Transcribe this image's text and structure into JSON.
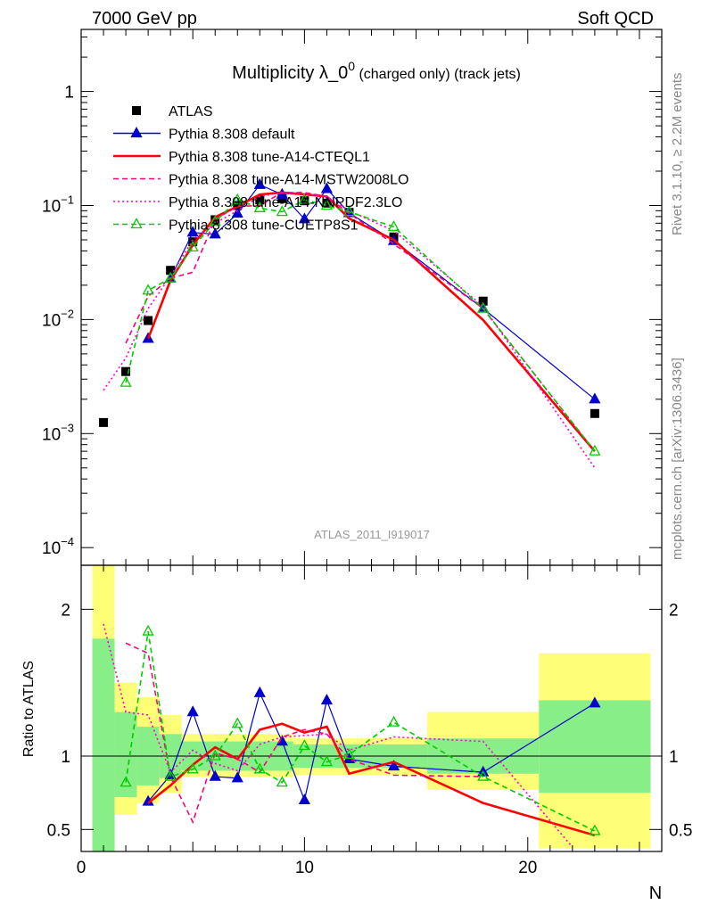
{
  "header": {
    "left": "7000 GeV pp",
    "right": "Soft QCD"
  },
  "side": {
    "top": "Rivet 3.1.10, ≥ 2.2M events",
    "bottom": "mcplots.cern.ch [arXiv:1306.3436]"
  },
  "title": {
    "main": "Multiplicity λ_0",
    "sup": "0",
    "small": " (charged only) (track jets)"
  },
  "watermark": "ATLAS_2011_I919017",
  "chart_data": [
    {
      "type": "scatter",
      "panel": "main",
      "ylabel": "",
      "xlabel": "N",
      "xlim": [
        0,
        26
      ],
      "ylim": [
        7e-05,
        3.5
      ],
      "yscale": "log",
      "yticks": [
        0.0001,
        0.001,
        0.01,
        0.1,
        1
      ],
      "ytick_labels": [
        {
          "base": "10",
          "exp": "−4"
        },
        {
          "base": "10",
          "exp": "−3"
        },
        {
          "base": "10",
          "exp": "−2"
        },
        {
          "base": "10",
          "exp": "−1"
        },
        {
          "base": "1",
          "exp": ""
        }
      ],
      "legend_position": "top-left",
      "series": [
        {
          "name": "ATLAS",
          "color": "#000000",
          "style": "marker-square",
          "x": [
            1,
            2,
            3,
            4,
            5,
            6,
            7,
            8,
            9,
            10,
            11,
            12,
            14,
            18,
            23
          ],
          "y": [
            0.00125,
            0.0035,
            0.0098,
            0.027,
            0.048,
            0.075,
            0.1,
            0.112,
            0.115,
            0.11,
            0.105,
            0.087,
            0.053,
            0.0145,
            0.0015
          ]
        },
        {
          "name": "Pythia 8.308 default",
          "color": "#0000cc",
          "style": "solid-triangle",
          "x": [
            3,
            4,
            5,
            6,
            7,
            8,
            9,
            10,
            11,
            12,
            14,
            18,
            23
          ],
          "y": [
            0.0068,
            0.023,
            0.058,
            0.056,
            0.085,
            0.152,
            0.125,
            0.076,
            0.14,
            0.086,
            0.049,
            0.0125,
            0.002
          ]
        },
        {
          "name": "Pythia 8.308 tune-A14-CTEQL1",
          "color": "#ff0000",
          "style": "solid-thick",
          "x": [
            3,
            4,
            5,
            6,
            7,
            8,
            9,
            10,
            11,
            12,
            14,
            18,
            23
          ],
          "y": [
            0.0068,
            0.022,
            0.045,
            0.079,
            0.098,
            0.125,
            0.13,
            0.125,
            0.12,
            0.077,
            0.05,
            0.0099,
            0.0007
          ]
        },
        {
          "name": "Pythia 8.308 tune-A14-MSTW2008LO",
          "color": "#ff007f",
          "style": "dashed",
          "x": [
            2,
            3,
            4,
            5,
            6,
            7,
            8,
            9,
            10,
            11,
            12,
            14,
            18,
            23
          ],
          "y": [
            0.0062,
            0.016,
            0.023,
            0.026,
            0.076,
            0.098,
            0.1,
            0.13,
            0.13,
            0.12,
            0.085,
            0.046,
            0.0125,
            0.0007
          ]
        },
        {
          "name": "Pythia 8.308 tune-A14-NNPDF2.3LO",
          "color": "#ff00cc",
          "style": "dotted",
          "x": [
            1,
            2,
            3,
            4,
            5,
            6,
            7,
            8,
            9,
            10,
            11,
            12,
            14,
            18,
            23
          ],
          "y": [
            0.0024,
            0.0046,
            0.0125,
            0.024,
            0.05,
            0.07,
            0.09,
            0.12,
            0.13,
            0.125,
            0.12,
            0.09,
            0.06,
            0.013,
            0.0005
          ]
        },
        {
          "name": "Pythia 8.308 tune-CUETP8S1",
          "color": "#00cc00",
          "style": "dashed-open-triangle",
          "x": [
            2,
            3,
            4,
            5,
            6,
            7,
            8,
            9,
            10,
            11,
            12,
            14,
            18,
            23
          ],
          "y": [
            0.0028,
            0.018,
            0.023,
            0.043,
            0.072,
            0.112,
            0.095,
            0.088,
            0.112,
            0.1,
            0.088,
            0.065,
            0.0125,
            0.0007
          ]
        }
      ]
    },
    {
      "type": "line",
      "panel": "ratio",
      "ylabel": "Ratio to ATLAS",
      "xlabel": "N",
      "xlim": [
        0,
        26
      ],
      "ylim": [
        0.35,
        2.3
      ],
      "xticks": [
        0,
        10,
        20
      ],
      "yticks": [
        0.5,
        1,
        2
      ],
      "ytick_labels": [
        "0.5",
        "1",
        "2"
      ],
      "bands": [
        {
          "x0": 0.5,
          "x1": 1.5,
          "green": [
            0.35,
            1.8
          ],
          "yellow": [
            0.35,
            2.3
          ]
        },
        {
          "x0": 1.5,
          "x1": 2.5,
          "green": [
            0.72,
            1.3
          ],
          "yellow": [
            0.6,
            1.5
          ]
        },
        {
          "x0": 2.5,
          "x1": 3.5,
          "green": [
            0.8,
            1.2
          ],
          "yellow": [
            0.68,
            1.4
          ]
        },
        {
          "x0": 3.5,
          "x1": 4.5,
          "green": [
            0.85,
            1.15
          ],
          "yellow": [
            0.75,
            1.28
          ]
        },
        {
          "x0": 4.5,
          "x1": 9.5,
          "green": [
            0.9,
            1.1
          ],
          "yellow": [
            0.86,
            1.15
          ]
        },
        {
          "x0": 9.5,
          "x1": 15.5,
          "green": [
            0.92,
            1.08
          ],
          "yellow": [
            0.87,
            1.12
          ]
        },
        {
          "x0": 15.5,
          "x1": 20.5,
          "green": [
            0.88,
            1.12
          ],
          "yellow": [
            0.77,
            1.3
          ]
        },
        {
          "x0": 20.5,
          "x1": 25.5,
          "green": [
            0.75,
            1.38
          ],
          "yellow": [
            0.37,
            1.7
          ]
        }
      ],
      "series": [
        {
          "name": "Pythia 8.308 default",
          "color": "#0000cc",
          "style": "solid-triangle",
          "x": [
            3,
            4,
            5,
            6,
            7,
            8,
            9,
            10,
            11,
            12,
            14,
            18,
            23
          ],
          "y": [
            0.69,
            0.87,
            1.3,
            0.86,
            0.85,
            1.43,
            1.1,
            0.7,
            1.38,
            0.98,
            0.93,
            0.89,
            1.36
          ]
        },
        {
          "name": "Pythia 8.308 tune-A14-CTEQL1",
          "color": "#ff0000",
          "style": "solid-thick",
          "x": [
            3,
            4,
            5,
            6,
            7,
            8,
            9,
            10,
            11,
            12,
            14,
            18,
            23
          ],
          "y": [
            0.68,
            0.8,
            0.94,
            1.06,
            0.98,
            1.18,
            1.22,
            1.16,
            1.2,
            0.88,
            0.96,
            0.68,
            0.46
          ]
        },
        {
          "name": "Pythia 8.308 tune-A14-MSTW2008LO",
          "color": "#ff007f",
          "style": "dashed",
          "x": [
            2,
            3,
            4,
            5,
            6,
            7,
            8,
            9,
            10,
            11,
            12,
            14,
            18
          ],
          "y": [
            1.77,
            1.7,
            0.86,
            0.55,
            1.02,
            0.98,
            0.89,
            1.13,
            1.18,
            1.15,
            0.98,
            0.87,
            0.86
          ]
        },
        {
          "name": "Pythia 8.308 tune-A14-NNPDF2.3LO",
          "color": "#ff00cc",
          "style": "dotted",
          "x": [
            1,
            2,
            3,
            4,
            5,
            6,
            7,
            8,
            9,
            10,
            11,
            12,
            14,
            18,
            22
          ],
          "y": [
            1.9,
            1.3,
            1.28,
            0.89,
            1.04,
            0.95,
            0.9,
            1.08,
            1.13,
            1.14,
            1.15,
            1.04,
            1.13,
            1.1,
            0.38
          ]
        },
        {
          "name": "Pythia 8.308 tune-CUETP8S1",
          "color": "#00cc00",
          "style": "dashed-open-triangle",
          "x": [
            2,
            3,
            4,
            5,
            6,
            7,
            8,
            9,
            10,
            11,
            12,
            14,
            18,
            23
          ],
          "y": [
            0.82,
            1.85,
            0.86,
            0.91,
            1.0,
            1.22,
            0.91,
            0.82,
            1.07,
            0.96,
            1.01,
            1.23,
            0.86,
            0.49
          ]
        }
      ]
    }
  ]
}
